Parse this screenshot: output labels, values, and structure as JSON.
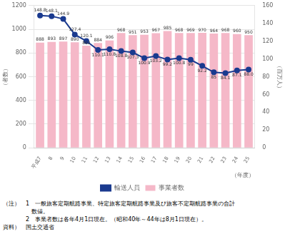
{
  "chart_data": {
    "type": "bar",
    "categories": [
      "平成7",
      "8",
      "9",
      "10",
      "11",
      "12",
      "13",
      "14",
      "15",
      "16",
      "17",
      "18",
      "19",
      "20",
      "21",
      "22",
      "23",
      "24",
      "25"
    ],
    "series": [
      {
        "name": "事業者数",
        "type": "bar",
        "color": "#f5b8c8",
        "values": [
          888,
          893,
          897,
          890,
          862,
          884,
          906,
          968,
          951,
          953,
          967,
          985,
          968,
          969,
          970,
          964,
          968,
          960,
          950
        ],
        "data_labels": true
      },
      {
        "name": "輸送人員",
        "type": "line",
        "color": "#1a3a8f",
        "axis": "y2",
        "marker": "circle",
        "values": [
          148.8,
          148.1,
          144.9,
          127.4,
          120.1,
          110.1,
          110.8,
          108.8,
          107.3,
          100.9,
          103.2,
          99.2,
          100.8,
          99,
          92.2,
          85,
          84.1,
          87.1,
          88.0
        ],
        "value_labels": [
          "148.8",
          "148.1",
          "144.9",
          "127.4",
          "120.1",
          "110.1",
          "110.8",
          "108.8",
          "107.3",
          "100.9",
          "103.2",
          "99.2",
          "100.8",
          "99",
          "92.2",
          "85",
          "84.1",
          "87.1",
          "88.0"
        ],
        "data_labels": true
      }
    ],
    "ylabel": "（者数）",
    "y2label": "（百万人）",
    "xlabel": "（年度）",
    "ylim": [
      0,
      1200
    ],
    "yticks": [
      0,
      200,
      400,
      600,
      800,
      1000,
      1200
    ],
    "y2lim": [
      0,
      160
    ],
    "y2ticks": [
      0,
      20,
      40,
      60,
      80,
      100,
      120,
      140,
      160
    ],
    "grid": true,
    "legend": "bottom",
    "annotations": [
      "（注）　1　一般旅客定期航路事業、特定旅客定期航路事業及び旅客不定期航路事業の合計",
      "　　　　　数値。",
      "　　　　2　事業者数は各年4月1日現在。（昭和40年～44年は8月1日現在）。",
      "資料）　国土交通省"
    ]
  }
}
